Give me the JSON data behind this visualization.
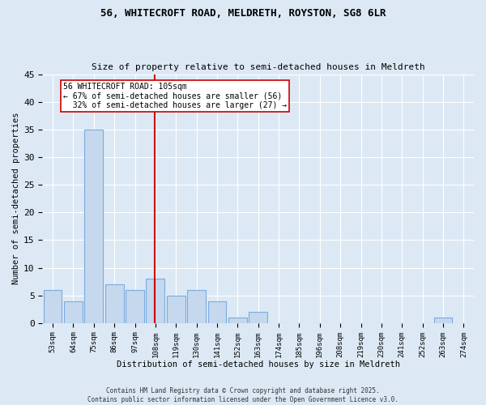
{
  "title1": "56, WHITECROFT ROAD, MELDRETH, ROYSTON, SG8 6LR",
  "title2": "Size of property relative to semi-detached houses in Meldreth",
  "xlabel": "Distribution of semi-detached houses by size in Meldreth",
  "ylabel": "Number of semi-detached properties",
  "bin_labels": [
    "53sqm",
    "64sqm",
    "75sqm",
    "86sqm",
    "97sqm",
    "108sqm",
    "119sqm",
    "130sqm",
    "141sqm",
    "152sqm",
    "163sqm",
    "174sqm",
    "185sqm",
    "196sqm",
    "208sqm",
    "219sqm",
    "230sqm",
    "241sqm",
    "252sqm",
    "263sqm",
    "274sqm"
  ],
  "values": [
    6,
    4,
    35,
    7,
    6,
    8,
    5,
    6,
    4,
    1,
    2,
    0,
    0,
    0,
    0,
    0,
    0,
    0,
    0,
    1,
    0
  ],
  "bar_color": "#c5d8ed",
  "bar_edge_color": "#7aabe0",
  "vline_bin_index": 5,
  "vline_color": "#cc0000",
  "annotation_text": "56 WHITECROFT ROAD: 105sqm\n← 67% of semi-detached houses are smaller (56)\n  32% of semi-detached houses are larger (27) →",
  "annotation_box_color": "#ffffff",
  "annotation_box_edge": "#cc0000",
  "ylim": [
    0,
    45
  ],
  "yticks": [
    0,
    5,
    10,
    15,
    20,
    25,
    30,
    35,
    40,
    45
  ],
  "background_color": "#dce9f5",
  "grid_color": "#ffffff",
  "footer": "Contains HM Land Registry data © Crown copyright and database right 2025.\nContains public sector information licensed under the Open Government Licence v3.0."
}
